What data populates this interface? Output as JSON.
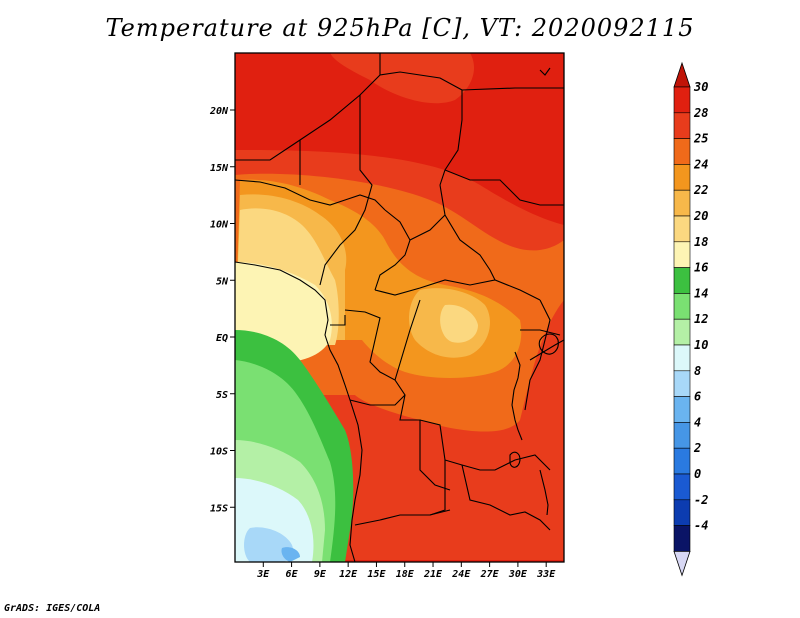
{
  "title": "Temperature at 925hPa [C], VT: 2020092115",
  "credit": "GrADS: IGES/COLA",
  "map": {
    "lon_range": [
      0,
      34
    ],
    "lat_range": [
      -20,
      25
    ],
    "x_tick_labels": [
      "3E",
      "6E",
      "9E",
      "12E",
      "15E",
      "18E",
      "21E",
      "24E",
      "27E",
      "30E",
      "33E"
    ],
    "y_tick_labels": [
      "20N",
      "15N",
      "10N",
      "5N",
      "EQ",
      "5S",
      "10S",
      "15S"
    ]
  },
  "colorbar": {
    "labels": [
      "30",
      "28",
      "25",
      "24",
      "22",
      "20",
      "18",
      "16",
      "14",
      "12",
      "10",
      "8",
      "6",
      "4",
      "2",
      "0",
      "-2",
      "-4"
    ],
    "colors": [
      "#e02010",
      "#e83c1c",
      "#f06a1a",
      "#f3961e",
      "#f7b84a",
      "#fbd880",
      "#fdf4b4",
      "#3cc040",
      "#7ae072",
      "#b4f0a6",
      "#dcf8fa",
      "#a8d8f8",
      "#6ab4f0",
      "#4696e6",
      "#2a7ae0",
      "#1a5ad2",
      "#0c3cb0",
      "#0a1466"
    ],
    "top_tip_color": "#c01408",
    "bottom_tip_color": "#d8d8f4"
  }
}
